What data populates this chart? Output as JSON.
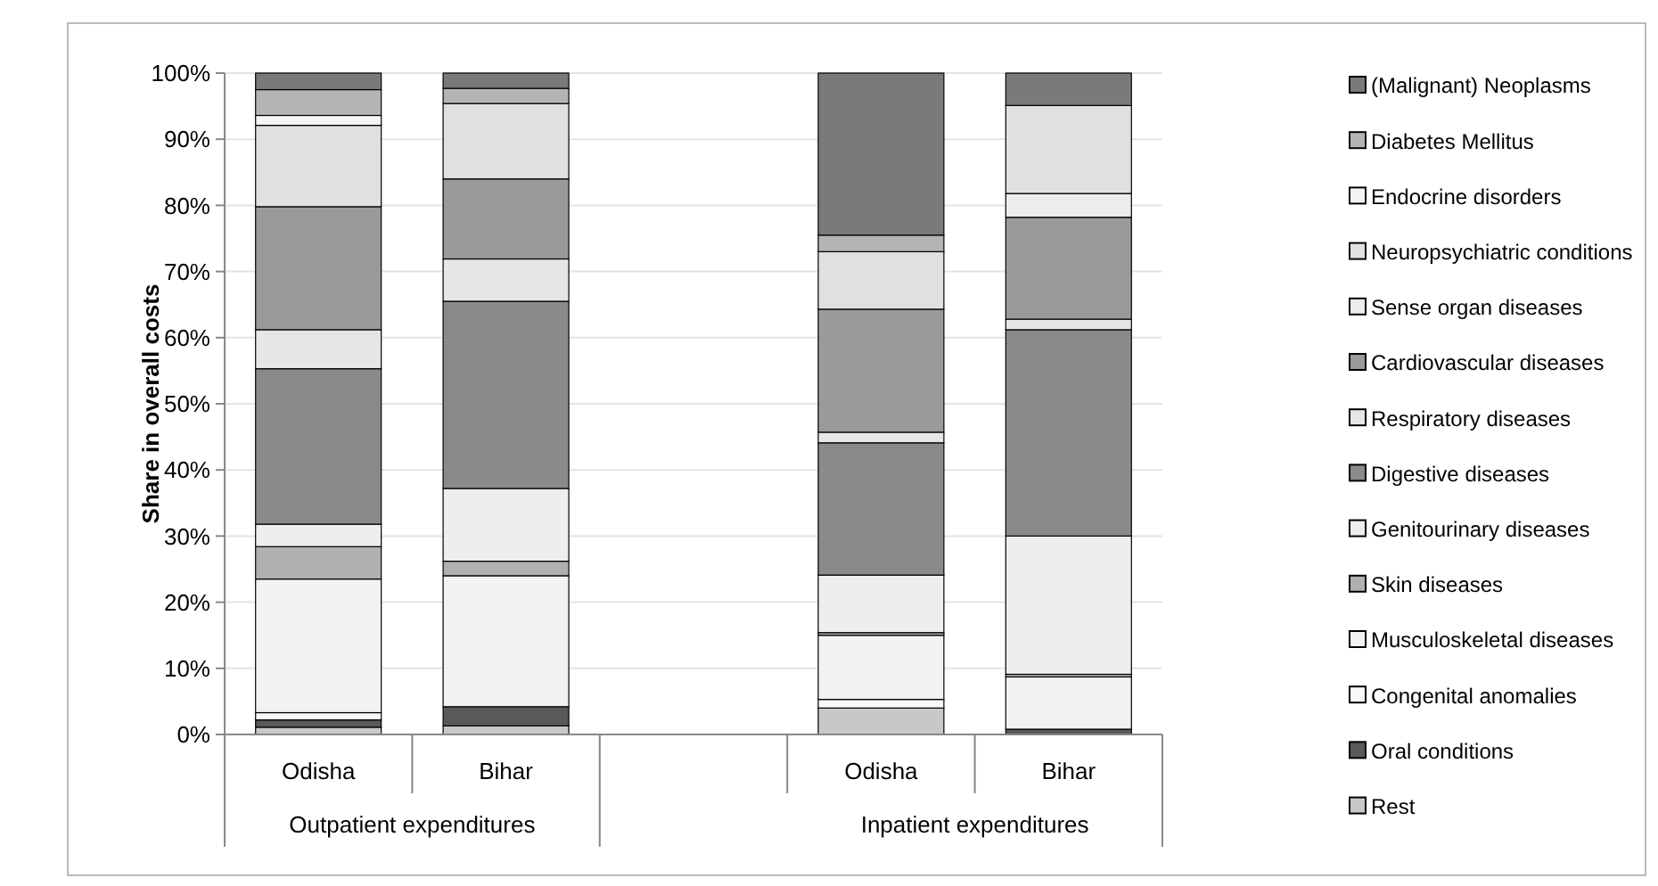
{
  "chart_data": {
    "type": "bar",
    "stacked": true,
    "ylabel": "Share in overall costs",
    "categories": [
      "Odisha",
      "Bihar",
      null,
      "Odisha",
      "Bihar"
    ],
    "annotations": [
      "Outpatient expenditures",
      "Inpatient expenditures"
    ],
    "ylim": [
      0,
      100
    ],
    "yticks": [
      {
        "value": 0,
        "label": "0%"
      },
      {
        "value": 10,
        "label": "10%"
      },
      {
        "value": 20,
        "label": "20%"
      },
      {
        "value": 30,
        "label": "30%"
      },
      {
        "value": 40,
        "label": "40%"
      },
      {
        "value": 50,
        "label": "50%"
      },
      {
        "value": 60,
        "label": "60%"
      },
      {
        "value": 70,
        "label": "70%"
      },
      {
        "value": 80,
        "label": "80%"
      },
      {
        "value": 90,
        "label": "90%"
      },
      {
        "value": 100,
        "label": "100%"
      }
    ],
    "grid": "y",
    "legend": "right",
    "series": [
      {
        "name": "Rest",
        "color": "#c8c8c8",
        "values": [
          1.1,
          1.3,
          null,
          4.0,
          0
        ]
      },
      {
        "name": "Oral conditions",
        "color": "#595959",
        "values": [
          1.1,
          2.9,
          null,
          0,
          0.8
        ]
      },
      {
        "name": "Congenital anomalies",
        "color": "#f8f8f8",
        "values": [
          1.1,
          0,
          null,
          1.3,
          0
        ]
      },
      {
        "name": "Musculoskeletal diseases",
        "color": "#f2f2f2",
        "values": [
          20.2,
          19.8,
          null,
          9.7,
          7.9
        ]
      },
      {
        "name": "Skin diseases",
        "color": "#b0b0b0",
        "values": [
          4.9,
          2.2,
          null,
          0.4,
          0.4
        ]
      },
      {
        "name": "Genitourinary diseases",
        "color": "#eeeeee",
        "values": [
          3.4,
          11.0,
          null,
          8.7,
          20.9
        ]
      },
      {
        "name": "Digestive diseases",
        "color": "#8a8a8a",
        "values": [
          23.5,
          28.3,
          null,
          20.0,
          31.2
        ]
      },
      {
        "name": "Respiratory diseases",
        "color": "#e6e6e6",
        "values": [
          5.9,
          6.4,
          null,
          1.6,
          1.6
        ]
      },
      {
        "name": "Cardiovascular diseases",
        "color": "#9a9a9a",
        "values": [
          18.6,
          12.1,
          null,
          18.6,
          15.4
        ]
      },
      {
        "name": "Sense organ diseases",
        "color": "#ececec",
        "values": [
          0,
          0,
          null,
          0,
          3.6
        ]
      },
      {
        "name": "Neuropsychiatric conditions",
        "color": "#e0e0e0",
        "values": [
          12.3,
          11.4,
          null,
          8.7,
          13.3
        ]
      },
      {
        "name": "Endocrine disorders",
        "color": "#f4f4f4",
        "values": [
          1.5,
          0,
          null,
          0,
          0
        ]
      },
      {
        "name": "Diabetes Mellitus",
        "color": "#b4b4b4",
        "values": [
          3.9,
          2.3,
          null,
          2.5,
          0
        ]
      },
      {
        "name": "(Malignant) Neoplasms",
        "color": "#7a7a7a",
        "values": [
          2.5,
          2.3,
          null,
          24.5,
          4.9
        ]
      }
    ]
  }
}
